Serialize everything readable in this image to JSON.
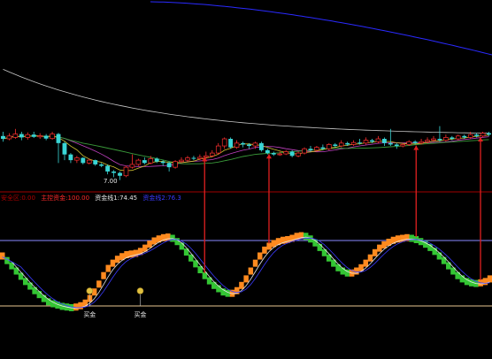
{
  "chart_data": [
    {
      "type": "candlestick",
      "title": "",
      "price_low_label": "7.00",
      "ylim": [
        6.8,
        10.6
      ],
      "candles": [
        {
          "o": 8.55,
          "c": 8.45,
          "h": 8.7,
          "l": 8.35
        },
        {
          "o": 8.45,
          "c": 8.55,
          "h": 8.65,
          "l": 8.4
        },
        {
          "o": 8.5,
          "c": 8.62,
          "h": 8.8,
          "l": 8.45
        },
        {
          "o": 8.62,
          "c": 8.5,
          "h": 8.7,
          "l": 8.4
        },
        {
          "o": 8.5,
          "c": 8.6,
          "h": 8.68,
          "l": 8.42
        },
        {
          "o": 8.6,
          "c": 8.52,
          "h": 8.7,
          "l": 8.48
        },
        {
          "o": 8.52,
          "c": 8.56,
          "h": 8.65,
          "l": 8.45
        },
        {
          "o": 8.56,
          "c": 8.46,
          "h": 8.62,
          "l": 8.4
        },
        {
          "o": 8.46,
          "c": 8.62,
          "h": 8.7,
          "l": 8.42
        },
        {
          "o": 8.62,
          "c": 8.3,
          "h": 8.66,
          "l": 7.6
        },
        {
          "o": 8.3,
          "c": 7.9,
          "h": 8.35,
          "l": 7.7
        },
        {
          "o": 7.9,
          "c": 7.7,
          "h": 7.95,
          "l": 7.6
        },
        {
          "o": 7.7,
          "c": 7.78,
          "h": 7.85,
          "l": 7.6
        },
        {
          "o": 7.78,
          "c": 7.6,
          "h": 7.8,
          "l": 7.55
        },
        {
          "o": 7.6,
          "c": 7.7,
          "h": 7.75,
          "l": 7.55
        },
        {
          "o": 7.7,
          "c": 7.55,
          "h": 7.72,
          "l": 7.5
        },
        {
          "o": 7.55,
          "c": 7.5,
          "h": 7.6,
          "l": 7.45
        },
        {
          "o": 7.5,
          "c": 7.3,
          "h": 7.55,
          "l": 7.2
        },
        {
          "o": 7.3,
          "c": 7.25,
          "h": 7.35,
          "l": 7.1
        },
        {
          "o": 7.25,
          "c": 7.15,
          "h": 7.3,
          "l": 7.0
        },
        {
          "o": 7.15,
          "c": 7.45,
          "h": 7.5,
          "l": 7.1
        },
        {
          "o": 7.45,
          "c": 7.55,
          "h": 7.9,
          "l": 7.4
        },
        {
          "o": 7.55,
          "c": 7.7,
          "h": 7.75,
          "l": 7.5
        },
        {
          "o": 7.7,
          "c": 7.6,
          "h": 7.8,
          "l": 7.55
        },
        {
          "o": 7.6,
          "c": 7.75,
          "h": 7.85,
          "l": 7.55
        },
        {
          "o": 7.75,
          "c": 7.65,
          "h": 7.8,
          "l": 7.6
        },
        {
          "o": 7.65,
          "c": 7.6,
          "h": 7.7,
          "l": 7.5
        },
        {
          "o": 7.6,
          "c": 7.45,
          "h": 7.65,
          "l": 7.3
        },
        {
          "o": 7.45,
          "c": 7.65,
          "h": 7.7,
          "l": 7.4
        },
        {
          "o": 7.65,
          "c": 7.7,
          "h": 7.8,
          "l": 7.6
        },
        {
          "o": 7.7,
          "c": 7.78,
          "h": 7.85,
          "l": 7.65
        },
        {
          "o": 7.78,
          "c": 7.75,
          "h": 7.85,
          "l": 7.7
        },
        {
          "o": 7.75,
          "c": 7.8,
          "h": 7.9,
          "l": 7.7
        },
        {
          "o": 7.8,
          "c": 7.85,
          "h": 8.0,
          "l": 7.75
        },
        {
          "o": 7.85,
          "c": 7.95,
          "h": 8.05,
          "l": 7.8
        },
        {
          "o": 7.95,
          "c": 8.2,
          "h": 8.3,
          "l": 7.9
        },
        {
          "o": 8.2,
          "c": 8.45,
          "h": 8.5,
          "l": 8.1
        },
        {
          "o": 8.45,
          "c": 8.15,
          "h": 8.5,
          "l": 8.1
        },
        {
          "o": 8.15,
          "c": 8.3,
          "h": 8.4,
          "l": 8.1
        },
        {
          "o": 8.3,
          "c": 8.25,
          "h": 8.35,
          "l": 8.15
        },
        {
          "o": 8.25,
          "c": 8.2,
          "h": 8.3,
          "l": 8.1
        },
        {
          "o": 8.2,
          "c": 8.3,
          "h": 8.35,
          "l": 8.1
        },
        {
          "o": 8.3,
          "c": 8.05,
          "h": 8.35,
          "l": 8.0
        },
        {
          "o": 8.05,
          "c": 7.95,
          "h": 8.1,
          "l": 7.9
        },
        {
          "o": 7.95,
          "c": 7.9,
          "h": 8.0,
          "l": 7.85
        },
        {
          "o": 7.9,
          "c": 7.92,
          "h": 8.0,
          "l": 7.85
        },
        {
          "o": 7.92,
          "c": 8.0,
          "h": 8.05,
          "l": 7.88
        },
        {
          "o": 8.0,
          "c": 7.85,
          "h": 8.05,
          "l": 7.8
        },
        {
          "o": 7.85,
          "c": 7.95,
          "h": 8.0,
          "l": 7.8
        },
        {
          "o": 7.95,
          "c": 8.1,
          "h": 8.15,
          "l": 7.9
        },
        {
          "o": 8.1,
          "c": 8.05,
          "h": 8.2,
          "l": 8.0
        },
        {
          "o": 8.05,
          "c": 8.15,
          "h": 8.2,
          "l": 8.0
        },
        {
          "o": 8.15,
          "c": 8.1,
          "h": 8.25,
          "l": 8.05
        },
        {
          "o": 8.1,
          "c": 8.25,
          "h": 8.3,
          "l": 8.05
        },
        {
          "o": 8.25,
          "c": 8.2,
          "h": 8.3,
          "l": 8.15
        },
        {
          "o": 8.2,
          "c": 8.3,
          "h": 8.4,
          "l": 8.15
        },
        {
          "o": 8.3,
          "c": 8.25,
          "h": 8.35,
          "l": 8.2
        },
        {
          "o": 8.25,
          "c": 8.32,
          "h": 8.4,
          "l": 8.2
        },
        {
          "o": 8.32,
          "c": 8.3,
          "h": 8.45,
          "l": 8.25
        },
        {
          "o": 8.3,
          "c": 8.4,
          "h": 8.5,
          "l": 8.25
        },
        {
          "o": 8.4,
          "c": 8.35,
          "h": 8.45,
          "l": 8.3
        },
        {
          "o": 8.35,
          "c": 8.45,
          "h": 8.55,
          "l": 8.3
        },
        {
          "o": 8.45,
          "c": 8.3,
          "h": 8.5,
          "l": 8.2
        },
        {
          "o": 8.3,
          "c": 8.25,
          "h": 8.8,
          "l": 8.2
        },
        {
          "o": 8.25,
          "c": 8.2,
          "h": 8.3,
          "l": 8.1
        },
        {
          "o": 8.2,
          "c": 8.25,
          "h": 8.3,
          "l": 8.15
        },
        {
          "o": 8.25,
          "c": 8.35,
          "h": 8.4,
          "l": 8.2
        },
        {
          "o": 8.35,
          "c": 8.3,
          "h": 8.4,
          "l": 8.25
        },
        {
          "o": 8.3,
          "c": 8.35,
          "h": 8.45,
          "l": 8.25
        },
        {
          "o": 8.35,
          "c": 8.4,
          "h": 8.5,
          "l": 8.3
        },
        {
          "o": 8.4,
          "c": 8.45,
          "h": 8.55,
          "l": 8.35
        },
        {
          "o": 8.45,
          "c": 8.4,
          "h": 8.9,
          "l": 8.35
        },
        {
          "o": 8.4,
          "c": 8.5,
          "h": 8.6,
          "l": 8.35
        },
        {
          "o": 8.5,
          "c": 8.45,
          "h": 8.55,
          "l": 8.4
        },
        {
          "o": 8.45,
          "c": 8.55,
          "h": 8.6,
          "l": 8.4
        },
        {
          "o": 8.55,
          "c": 8.5,
          "h": 8.6,
          "l": 8.45
        },
        {
          "o": 8.5,
          "c": 8.6,
          "h": 8.7,
          "l": 8.45
        },
        {
          "o": 8.6,
          "c": 8.55,
          "h": 8.65,
          "l": 8.5
        },
        {
          "o": 8.55,
          "c": 8.65,
          "h": 8.7,
          "l": 8.5
        },
        {
          "o": 8.65,
          "c": 8.6,
          "h": 8.7,
          "l": 8.55
        }
      ]
    },
    {
      "type": "line",
      "title": "",
      "legend_items": [
        {
          "label": "安全区:0.00",
          "color": "#b00000"
        },
        {
          "label": "主控资金:100.00",
          "color": "#ff2a2a"
        },
        {
          "label": "资金线1:74.45",
          "color": "#e8e8e8"
        },
        {
          "label": "资金线2:76.3",
          "color": "#3a3aff"
        }
      ],
      "ylim": [
        -10,
        125
      ],
      "reference_lines": [
        {
          "value": 0,
          "color": "#e8c690"
        },
        {
          "value": 100,
          "color": "#8a8aff"
        }
      ],
      "signals": [
        {
          "label": "买金",
          "x_index": 19
        },
        {
          "label": "买金",
          "x_index": 30
        }
      ],
      "series": [
        {
          "values": [
            75,
            68,
            60,
            52,
            44,
            36,
            29,
            22,
            16,
            10,
            5,
            2,
            0,
            -2,
            -3,
            -4,
            -3,
            -1,
            3,
            10,
            20,
            32,
            45,
            56,
            64,
            70,
            74,
            77,
            78,
            79,
            82,
            87,
            93,
            98,
            101,
            103,
            104,
            102,
            97,
            90,
            81,
            72,
            63,
            54,
            45,
            37,
            30,
            25,
            20,
            18,
            18,
            22,
            30,
            40,
            52,
            64,
            75,
            84,
            90,
            94,
            97,
            99,
            100,
            102,
            105,
            106,
            105,
            101,
            95,
            88,
            80,
            72,
            64,
            57,
            52,
            49,
            49,
            52,
            57,
            64,
            72,
            80,
            87,
            92,
            96,
            99,
            101,
            102,
            103,
            102,
            100,
            97,
            93,
            88,
            82,
            75,
            68,
            60,
            52,
            45,
            40,
            36,
            34,
            33,
            34,
            36,
            40
          ]
        }
      ],
      "arrows_x_index": [
        44,
        58,
        90,
        104
      ]
    }
  ]
}
